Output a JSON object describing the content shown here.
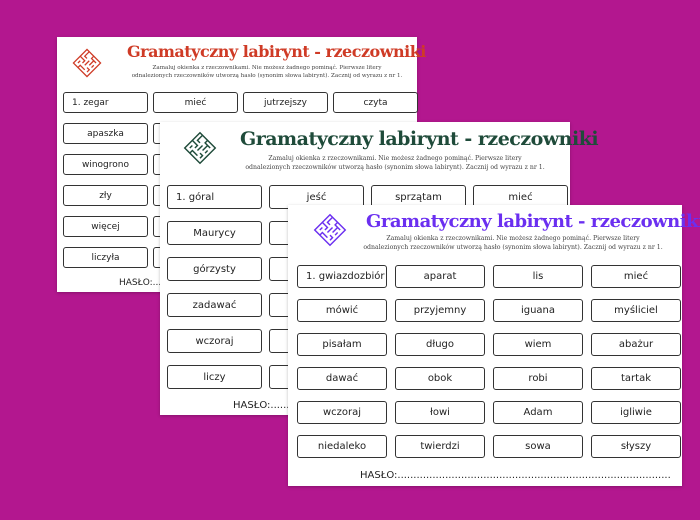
{
  "background_color": "#b3178f",
  "sheets": [
    {
      "title": "Gramatyczny labirynt - rzeczowniki",
      "title_color": "#cf3b26",
      "icon": "maze-icon",
      "instruction_line1": "Zamaluj okienka z rzeczownikami. Nie możesz żadnego pominąć.  Pierwsze litery",
      "instruction_line2": "odnalezionych rzeczowników utworzą hasło (synonim słowa labirynt). Zacznij od wyrazu z nr 1.",
      "words": [
        "1.     zegar",
        "mieć",
        "jutrzejszy",
        "czyta",
        "apaszka",
        "",
        "",
        "",
        "winogrono",
        "",
        "",
        "",
        "zły",
        "",
        "",
        "",
        "więcej",
        "",
        "",
        "",
        "liczyła",
        "",
        "",
        ""
      ],
      "haslo": "HASŁO:....."
    },
    {
      "title": "Gramatyczny labirynt - rzeczowniki",
      "title_color": "#1f4b3a",
      "icon": "maze-icon",
      "instruction_line1": "Zamaluj okienka z rzeczownikami. Nie możesz żadnego pominąć.  Pierwsze litery",
      "instruction_line2": "odnalezionych rzeczowników utworzą hasło (synonim słowa labirynt). Zacznij od wyrazu z nr 1.",
      "words": [
        "1.     góral",
        "jeść",
        "sprzątam",
        "mieć",
        "Maurycy",
        "",
        "",
        "",
        "górzysty",
        "",
        "",
        "",
        "zadawać",
        "",
        "",
        "",
        "wczoraj",
        "",
        "",
        "",
        "liczy",
        "",
        "",
        ""
      ],
      "haslo": "HASŁO:........"
    },
    {
      "title": "Gramatyczny labirynt - rzeczowniki",
      "title_color": "#6b2ff0",
      "icon": "maze-icon",
      "instruction_line1": "Zamaluj okienka z rzeczownikami. Nie możesz żadnego pominąć.  Pierwsze litery",
      "instruction_line2": "odnalezionych rzeczowników utworzą hasło (synonim słowa labirynt). Zacznij od wyrazu z nr 1.",
      "words": [
        "1. gwiazdozbiór",
        "aparat",
        "lis",
        "mieć",
        "mówić",
        "przyjemny",
        "iguana",
        "myśliciel",
        "pisałam",
        "długo",
        "wiem",
        "abażur",
        "dawać",
        "obok",
        "robi",
        "tartak",
        "wczoraj",
        "łowi",
        "Adam",
        "igliwie",
        "niedaleko",
        "twierdzi",
        "sowa",
        "słyszy"
      ],
      "haslo": "HASŁO:......................................................................................"
    }
  ]
}
